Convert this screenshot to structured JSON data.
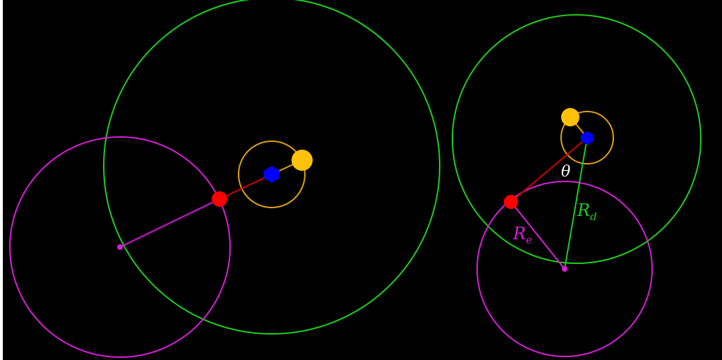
{
  "colors": {
    "background": "#000000",
    "outer_circle": "#1fcc1f",
    "eccentric_circle": "#d61fd6",
    "inner_circle": "#e0a010",
    "red_point": "#ff0000",
    "center_point": "#0000ff",
    "yellow_point": "#ffc20a",
    "eccentric_point": "#d61fd6",
    "red_line": "#cc0000",
    "label_white": "#ffffff"
  },
  "labels": {
    "theta": "θ",
    "r_d_main": "R",
    "r_d_sub": "d",
    "r_e_main": "R",
    "r_e_sub": "e"
  }
}
